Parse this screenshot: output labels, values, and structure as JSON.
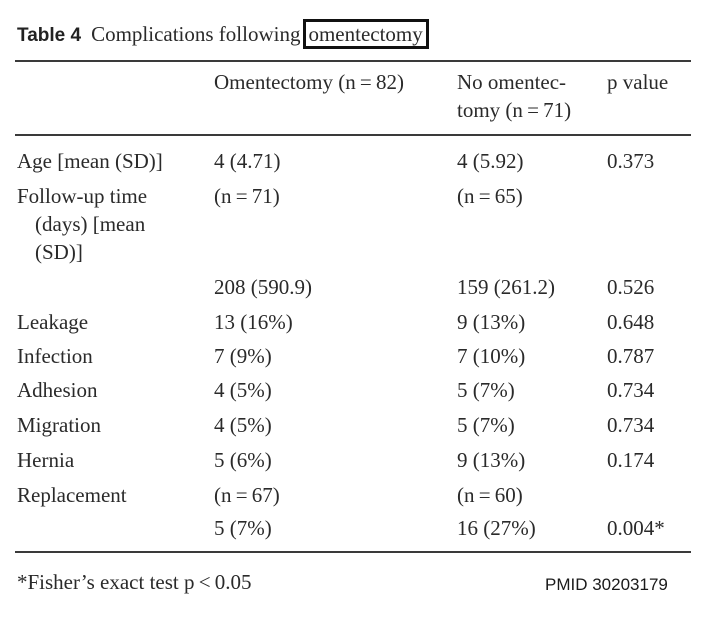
{
  "caption": {
    "label": "Table 4",
    "text": "Complications following",
    "highlight": "omentectomy"
  },
  "header": {
    "col2": "Omentectomy (n = 82)",
    "col3_line1": "No omentec-",
    "col3_line2": "tomy (n = 71)",
    "col4": "p value"
  },
  "rows": [
    {
      "label": "Age [mean (SD)]",
      "a": "4 (4.71)",
      "b": "4 (5.92)",
      "p": "0.373"
    },
    {
      "label_lines": [
        "Follow-up time",
        "(days) [mean",
        "(SD)]"
      ],
      "a": "(n = 71)",
      "b": "(n = 65)",
      "p": ""
    },
    {
      "label": "",
      "a": "208 (590.9)",
      "b": "159 (261.2)",
      "p": "0.526"
    },
    {
      "label": "Leakage",
      "a": "13 (16%)",
      "b": "9 (13%)",
      "p": "0.648"
    },
    {
      "label": "Infection",
      "a": "7 (9%)",
      "b": "7 (10%)",
      "p": "0.787"
    },
    {
      "label": "Adhesion",
      "a": "4 (5%)",
      "b": "5 (7%)",
      "p": "0.734"
    },
    {
      "label": "Migration",
      "a": "4 (5%)",
      "b": "5 (7%)",
      "p": "0.734"
    },
    {
      "label": "Hernia",
      "a": "5 (6%)",
      "b": "9 (13%)",
      "p": "0.174"
    },
    {
      "label": "Replacement",
      "a": "(n = 67)",
      "b": "(n = 60)",
      "p": ""
    },
    {
      "label": "",
      "a": "5 (7%)",
      "b": "16 (27%)",
      "p": "0.004*"
    }
  ],
  "footnote": "*Fisher’s exact test p < 0.05",
  "source": "PMID 30203179"
}
